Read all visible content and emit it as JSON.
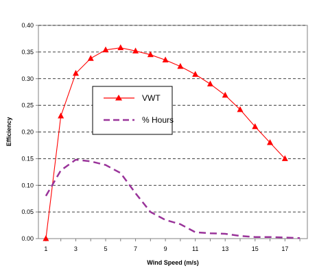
{
  "chart_data": {
    "type": "line",
    "title": "",
    "xlabel": "Wind Speed (m/s)",
    "ylabel": "Efficiency",
    "xlim": [
      0.5,
      18.5
    ],
    "ylim": [
      0,
      0.4
    ],
    "x_ticks": [
      "1",
      "3",
      "5",
      "7",
      "9",
      "11",
      "13",
      "15",
      "17"
    ],
    "y_ticks": [
      "0.00",
      "0.05",
      "0.10",
      "0.15",
      "0.20",
      "0.25",
      "0.30",
      "0.35",
      "0.40"
    ],
    "grid": "horizontal dashed",
    "legend_position": "center-left",
    "series": [
      {
        "name": "VWT",
        "color": "#ff0000",
        "marker": "triangle",
        "line_style": "solid",
        "x": [
          1,
          2,
          3,
          4,
          5,
          6,
          7,
          8,
          9,
          10,
          11,
          12,
          13,
          14,
          15,
          16,
          17
        ],
        "y": [
          0.0,
          0.23,
          0.31,
          0.338,
          0.354,
          0.358,
          0.352,
          0.345,
          0.335,
          0.323,
          0.308,
          0.29,
          0.269,
          0.242,
          0.21,
          0.18,
          0.15
        ]
      },
      {
        "name": "% Hours",
        "color": "#993399",
        "marker": "none",
        "line_style": "dashed",
        "x": [
          1,
          2,
          3,
          4,
          5,
          6,
          7,
          8,
          9,
          10,
          11,
          12,
          13,
          14,
          15,
          16,
          17,
          18
        ],
        "y": [
          0.08,
          0.128,
          0.148,
          0.145,
          0.138,
          0.123,
          0.085,
          0.05,
          0.035,
          0.027,
          0.012,
          0.01,
          0.009,
          0.005,
          0.003,
          0.003,
          0.002,
          0.001
        ]
      }
    ]
  }
}
